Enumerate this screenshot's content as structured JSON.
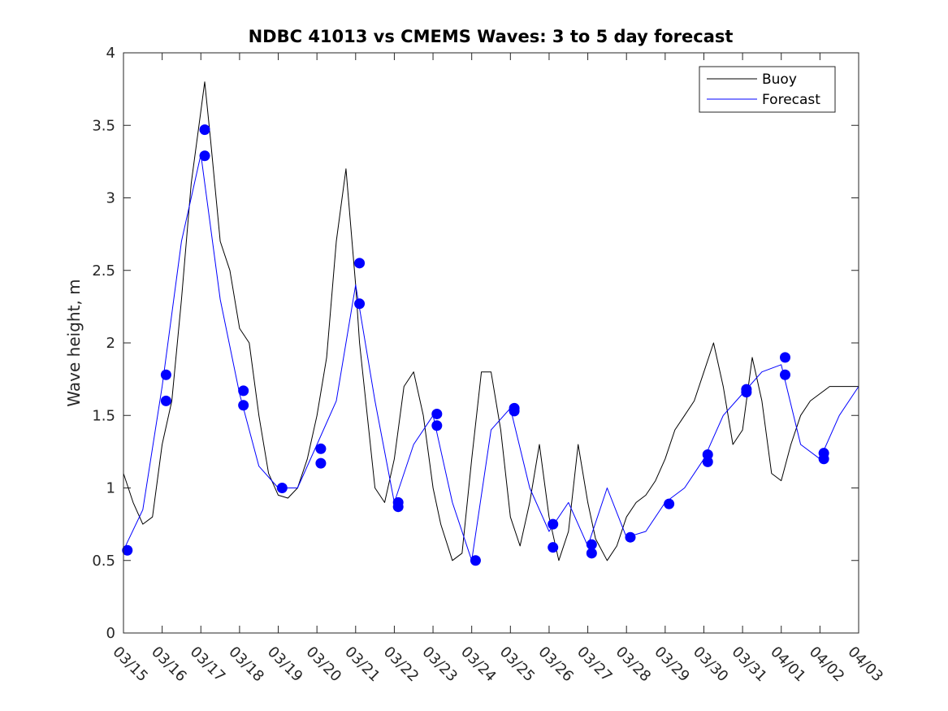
{
  "chart_data": {
    "type": "line",
    "title": "NDBC 41013 vs CMEMS Waves: 3 to 5 day forecast",
    "xlabel": "",
    "ylabel": "Wave height, m",
    "ylim": [
      0,
      4
    ],
    "yticks": [
      0,
      0.5,
      1,
      1.5,
      2,
      2.5,
      3,
      3.5,
      4
    ],
    "ytick_labels": [
      "0",
      "0.5",
      "1",
      "1.5",
      "2",
      "2.5",
      "3",
      "3.5",
      "4"
    ],
    "xlim": [
      0,
      19
    ],
    "xtick_labels": [
      "03/15",
      "03/16",
      "03/17",
      "03/18",
      "03/19",
      "03/20",
      "03/21",
      "03/22",
      "03/23",
      "03/24",
      "03/25",
      "03/26",
      "03/27",
      "03/28",
      "03/29",
      "03/30",
      "03/31",
      "04/01",
      "04/02",
      "04/03"
    ],
    "legend": {
      "location": "top-right",
      "entries": [
        "Buoy",
        "Forecast"
      ]
    },
    "colors": {
      "buoy": "#000000",
      "forecast": "#0000ff",
      "axes": "#262626"
    },
    "series": [
      {
        "name": "Buoy",
        "x": [
          0,
          0.25,
          0.5,
          0.75,
          1,
          1.25,
          1.5,
          1.75,
          2,
          2.1,
          2.25,
          2.5,
          2.75,
          3,
          3.25,
          3.5,
          3.75,
          4,
          4.25,
          4.5,
          4.75,
          5,
          5.25,
          5.5,
          5.75,
          6,
          6.1,
          6.3,
          6.5,
          6.75,
          7,
          7.25,
          7.5,
          7.75,
          8,
          8.2,
          8.5,
          8.75,
          9,
          9.25,
          9.5,
          9.75,
          10,
          10.25,
          10.5,
          10.75,
          11,
          11.25,
          11.5,
          11.75,
          12,
          12.2,
          12.5,
          12.75,
          13,
          13.25,
          13.5,
          13.75,
          14,
          14.25,
          14.5,
          14.75,
          15,
          15.25,
          15.5,
          15.75,
          16,
          16.25,
          16.5,
          16.75,
          17,
          17.25,
          17.5,
          17.75,
          18,
          18.25,
          18.5,
          19
        ],
        "y": [
          1.1,
          0.9,
          0.75,
          0.8,
          1.3,
          1.6,
          2.3,
          3.1,
          3.6,
          3.8,
          3.4,
          2.7,
          2.5,
          2.1,
          2.0,
          1.5,
          1.1,
          0.95,
          0.93,
          1.0,
          1.2,
          1.5,
          1.9,
          2.7,
          3.2,
          2.4,
          2.0,
          1.5,
          1.0,
          0.9,
          1.2,
          1.7,
          1.8,
          1.5,
          1.0,
          0.75,
          0.5,
          0.55,
          1.2,
          1.8,
          1.8,
          1.4,
          0.8,
          0.6,
          0.9,
          1.3,
          0.8,
          0.5,
          0.7,
          1.3,
          0.9,
          0.65,
          0.5,
          0.6,
          0.8,
          0.9,
          0.95,
          1.05,
          1.2,
          1.4,
          1.5,
          1.6,
          1.8,
          2.0,
          1.7,
          1.3,
          1.4,
          1.9,
          1.6,
          1.1,
          1.05,
          1.3,
          1.5,
          1.6,
          1.65,
          1.7,
          1.7,
          1.7
        ]
      },
      {
        "name": "Forecast",
        "x": [
          0,
          0.5,
          1,
          1.5,
          2,
          2.5,
          3,
          3.5,
          4,
          4.5,
          5,
          5.5,
          6,
          6.5,
          7,
          7.5,
          8,
          8.5,
          9,
          9.5,
          10,
          10.5,
          11,
          11.5,
          12,
          12.5,
          13,
          13.5,
          14,
          14.5,
          15,
          15.5,
          16,
          16.5,
          17,
          17.5,
          18,
          18.5,
          19
        ],
        "y": [
          0.57,
          0.85,
          1.7,
          2.7,
          3.3,
          2.3,
          1.65,
          1.15,
          1.0,
          1.0,
          1.3,
          1.6,
          2.4,
          1.6,
          0.9,
          1.3,
          1.5,
          0.9,
          0.5,
          1.4,
          1.55,
          1.0,
          0.7,
          0.9,
          0.6,
          1.0,
          0.66,
          0.7,
          0.9,
          1.0,
          1.2,
          1.5,
          1.65,
          1.8,
          1.85,
          1.3,
          1.2,
          1.5,
          1.7
        ]
      }
    ],
    "forecast_markers": {
      "x": [
        0.1,
        1.1,
        1.1,
        2.1,
        2.1,
        3.1,
        3.1,
        4.1,
        5.1,
        5.1,
        6.1,
        6.1,
        7.1,
        7.1,
        8.1,
        8.1,
        9.1,
        10.1,
        10.1,
        11.1,
        11.1,
        12.1,
        12.1,
        13.1,
        14.1,
        15.1,
        15.1,
        16.1,
        16.1,
        17.1,
        17.1,
        18.1,
        18.1
      ],
      "y": [
        0.57,
        1.78,
        1.6,
        3.47,
        3.29,
        1.67,
        1.57,
        1.0,
        1.27,
        1.17,
        2.55,
        2.27,
        0.9,
        0.87,
        1.51,
        1.43,
        0.5,
        1.55,
        1.53,
        0.75,
        0.59,
        0.61,
        0.55,
        0.66,
        0.89,
        1.23,
        1.18,
        1.68,
        1.66,
        1.9,
        1.78,
        1.24,
        1.2
      ]
    }
  }
}
